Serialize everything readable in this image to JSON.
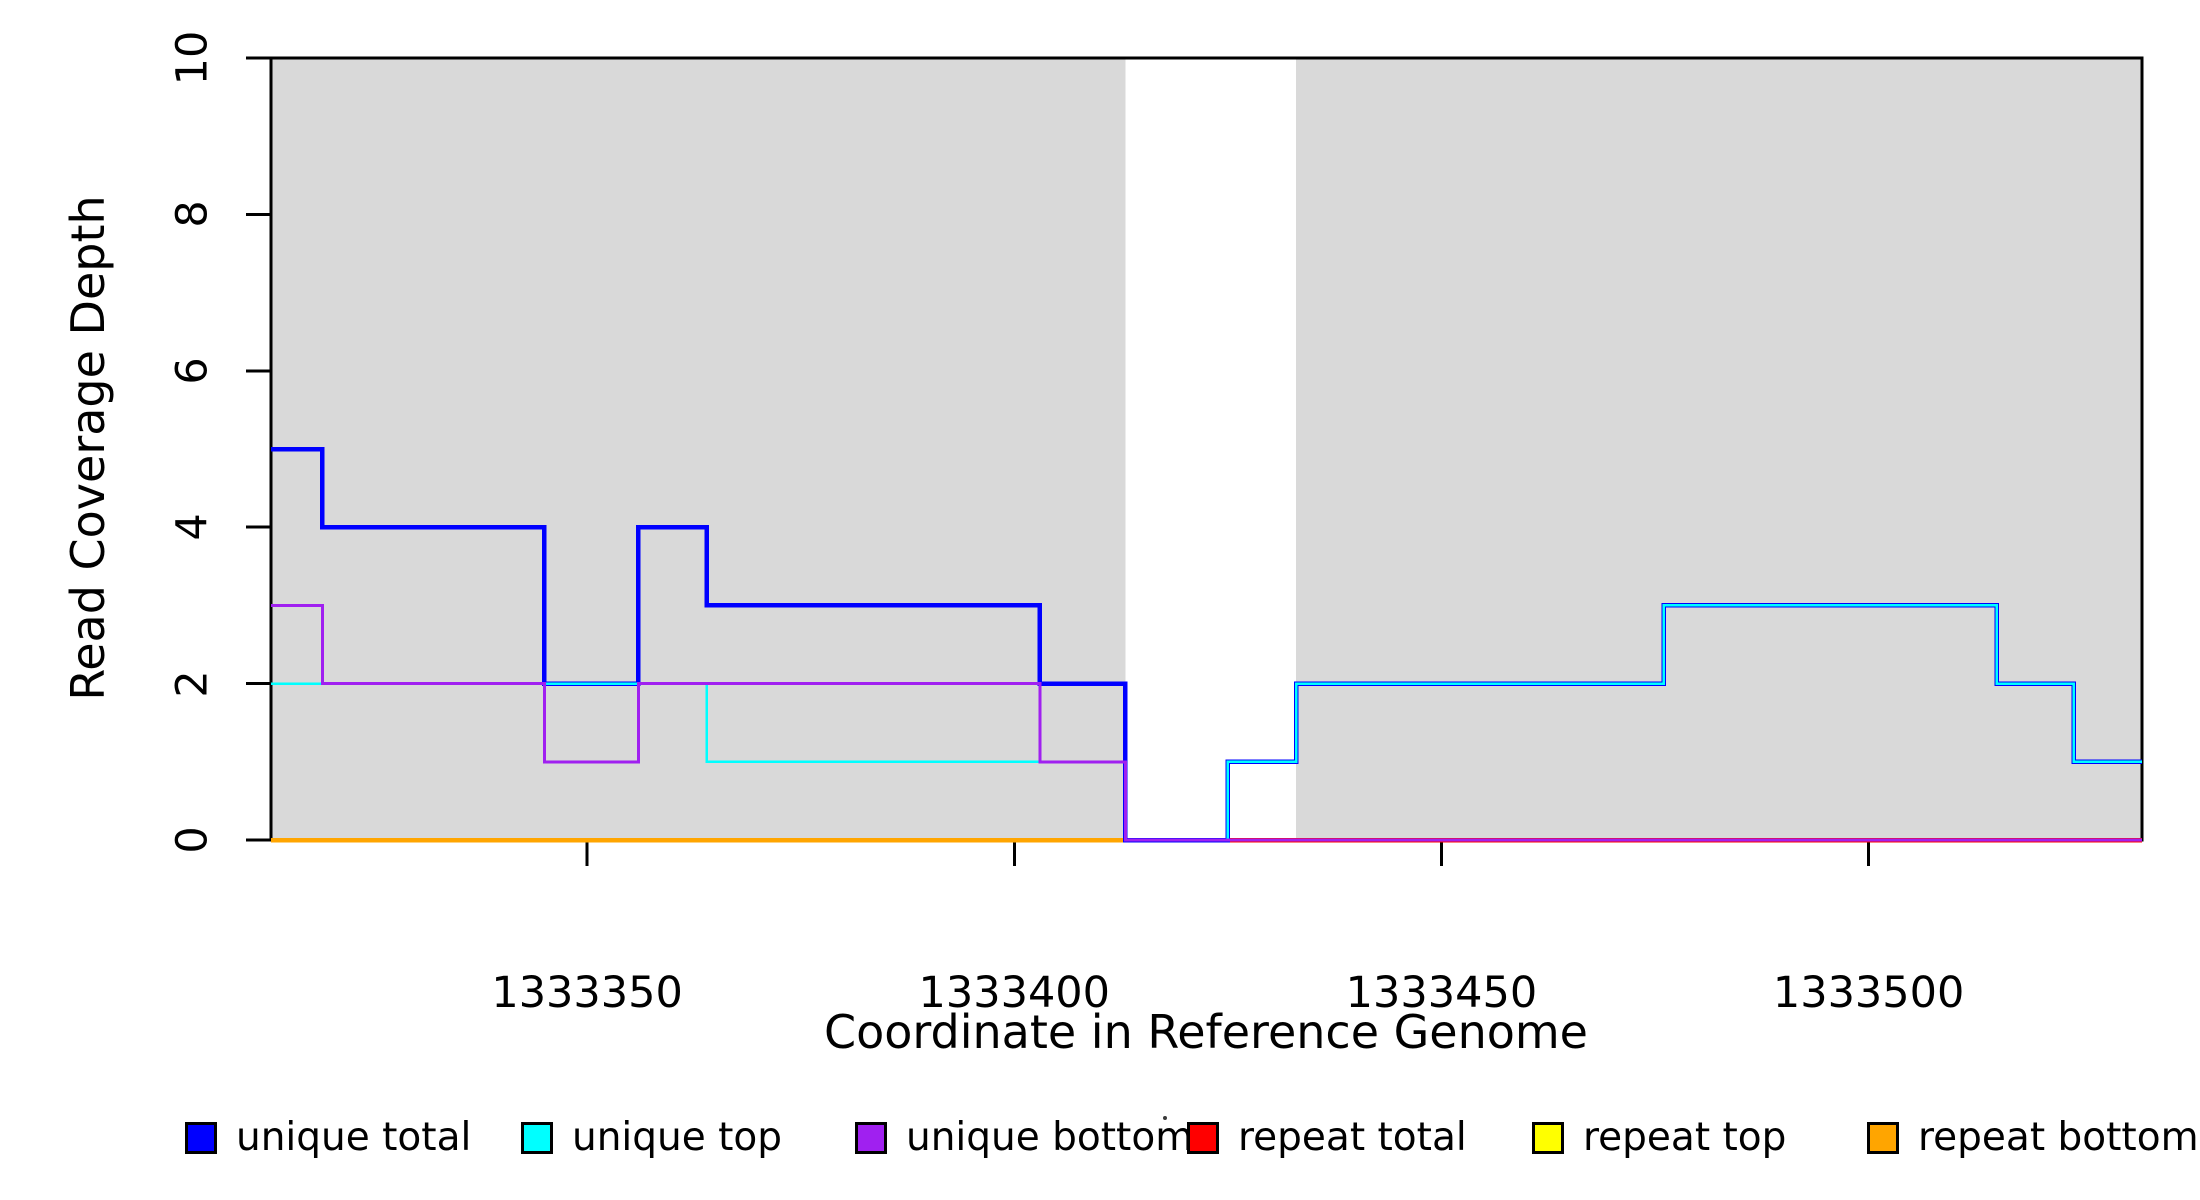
{
  "chart_data": {
    "type": "line",
    "stepped": true,
    "title": "",
    "xlabel": "Coordinate in Reference Genome",
    "ylabel": "Read Coverage Depth",
    "x_range": [
      1333313,
      1333532
    ],
    "y_range": [
      0,
      10
    ],
    "x_ticks": [
      1333350,
      1333400,
      1333450,
      1333500
    ],
    "y_ticks": [
      0,
      2,
      4,
      6,
      8,
      10
    ],
    "grid": false,
    "legend_position": "bottom",
    "background_color": "#ffffff",
    "shaded_region_color": "#d9d9d9",
    "shaded_regions": [
      {
        "name": "left-repeat-region",
        "x0": 1333313,
        "x1": 1333413
      },
      {
        "name": "right-repeat-region",
        "x0": 1333433,
        "x1": 1333532
      }
    ],
    "series": [
      {
        "name": "repeat total",
        "color": "#FF0000",
        "width": 4.5,
        "x_end": 1333532,
        "steps": [
          [
            1333313,
            0
          ]
        ]
      },
      {
        "name": "repeat top",
        "color": "#FFFF00",
        "width": 3,
        "x_end": 1333413,
        "steps": [
          [
            1333313,
            0
          ]
        ]
      },
      {
        "name": "repeat bottom",
        "color": "#FFA500",
        "width": 4.5,
        "x_end": 1333413,
        "steps": [
          [
            1333313,
            0
          ]
        ]
      },
      {
        "name": "unique total",
        "color": "#0000FF",
        "width": 4.5,
        "x_end": 1333532,
        "steps": [
          [
            1333313,
            5
          ],
          [
            1333319,
            4
          ],
          [
            1333345,
            2
          ],
          [
            1333356,
            4
          ],
          [
            1333364,
            3
          ],
          [
            1333403,
            2
          ],
          [
            1333413,
            0
          ],
          [
            1333425,
            1
          ],
          [
            1333433,
            2
          ],
          [
            1333476,
            3
          ],
          [
            1333515,
            2
          ],
          [
            1333524,
            1
          ]
        ]
      },
      {
        "name": "unique top",
        "color": "#00FFFF",
        "width": 2.5,
        "x_end": 1333532,
        "steps": [
          [
            1333313,
            2
          ],
          [
            1333364,
            1
          ],
          [
            1333413,
            0
          ],
          [
            1333425,
            1
          ],
          [
            1333433,
            2
          ],
          [
            1333476,
            3
          ],
          [
            1333515,
            2
          ],
          [
            1333524,
            1
          ]
        ]
      },
      {
        "name": "unique bottom",
        "color": "#A020F0",
        "width": 3,
        "x_end": 1333532,
        "steps": [
          [
            1333313,
            3
          ],
          [
            1333319,
            2
          ],
          [
            1333345,
            1
          ],
          [
            1333356,
            2
          ],
          [
            1333403,
            1
          ],
          [
            1333413,
            0
          ]
        ]
      }
    ]
  },
  "legend": {
    "items": [
      {
        "label": "unique total",
        "color": "#0000FF"
      },
      {
        "label": "unique top",
        "color": "#00FFFF"
      },
      {
        "label": "unique bottom",
        "color": "#A020F0"
      },
      {
        "label": "repeat total",
        "color": "#FF0000"
      },
      {
        "label": "repeat top",
        "color": "#FFFF00"
      },
      {
        "label": "repeat bottom",
        "color": "#FFA500"
      }
    ]
  }
}
